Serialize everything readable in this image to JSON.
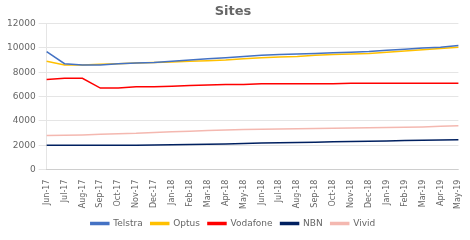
{
  "chart_data": {
    "type": "line",
    "title": "Sites",
    "categories": [
      "Jun-17",
      "Jul-17",
      "Aug-17",
      "Sep-17",
      "Oct-17",
      "Nov-17",
      "Dec-17",
      "Jan-18",
      "Feb-18",
      "Mar-18",
      "Apr-18",
      "May-18",
      "Jun-18",
      "Jul-18",
      "Aug-18",
      "Sep-18",
      "Oct-18",
      "Nov-18",
      "Dec-18",
      "Jan-19",
      "Feb-19",
      "Mar-19",
      "Apr-19",
      "May-19"
    ],
    "series": [
      {
        "name": "Telstra",
        "color": "#4472C4",
        "values": [
          9700,
          8700,
          8600,
          8600,
          8700,
          8750,
          8800,
          8900,
          9000,
          9100,
          9200,
          9300,
          9400,
          9450,
          9500,
          9550,
          9600,
          9650,
          9700,
          9800,
          9900,
          10000,
          10050,
          10200
        ]
      },
      {
        "name": "Optus",
        "color": "#FFC000",
        "values": [
          8900,
          8600,
          8600,
          8650,
          8700,
          8750,
          8800,
          8850,
          8900,
          8950,
          9000,
          9100,
          9200,
          9250,
          9300,
          9400,
          9450,
          9500,
          9550,
          9650,
          9750,
          9850,
          9950,
          10050
        ]
      },
      {
        "name": "Vodafone",
        "color": "#FF0000",
        "values": [
          7400,
          7500,
          7500,
          6700,
          6700,
          6800,
          6800,
          6850,
          6900,
          6950,
          7000,
          7000,
          7050,
          7050,
          7050,
          7050,
          7050,
          7100,
          7100,
          7100,
          7100,
          7100,
          7100,
          7100
        ]
      },
      {
        "name": "NBN",
        "color": "#002060",
        "values": [
          2000,
          2000,
          2000,
          2000,
          2000,
          2000,
          2020,
          2030,
          2050,
          2070,
          2100,
          2150,
          2180,
          2200,
          2220,
          2250,
          2280,
          2300,
          2320,
          2350,
          2380,
          2400,
          2420,
          2450
        ]
      },
      {
        "name": "Vivid",
        "color": "#F4B8B0",
        "values": [
          2800,
          2820,
          2850,
          2900,
          2950,
          2980,
          3050,
          3100,
          3150,
          3200,
          3250,
          3300,
          3320,
          3330,
          3350,
          3380,
          3400,
          3420,
          3430,
          3450,
          3480,
          3500,
          3550,
          3600
        ]
      }
    ],
    "ylim": [
      0,
      12000
    ],
    "yticks": [
      0,
      2000,
      4000,
      6000,
      8000,
      10000,
      12000
    ],
    "grid": true,
    "legend": "bottom"
  }
}
